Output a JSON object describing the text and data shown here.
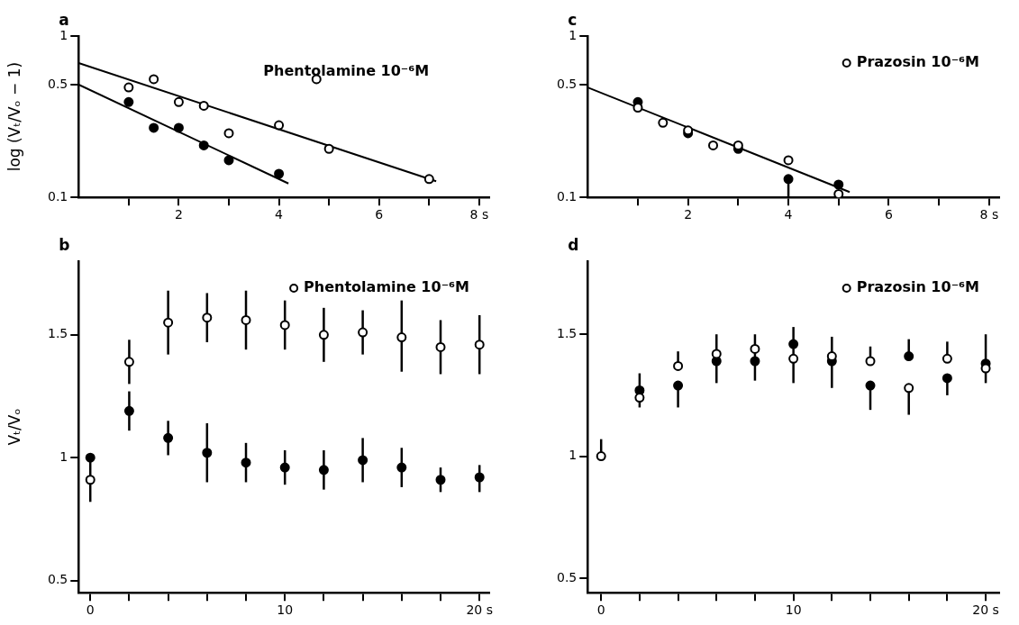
{
  "chart_data": [
    {
      "type": "scatter",
      "title": "a",
      "ylabel": "log (Vₜ/Vₒ − 1)",
      "annotations": [
        "Phentolamine 10⁻⁶M"
      ],
      "log": "y",
      "marker": "circle",
      "xlim": [
        0,
        8.2
      ],
      "ylim": [
        0.1,
        1
      ],
      "xticks": [
        {
          "value": 1,
          "label": null
        },
        2,
        {
          "value": 3,
          "label": null
        },
        4,
        {
          "value": 5,
          "label": null
        },
        6,
        {
          "value": 7,
          "label": null
        },
        {
          "value": 8,
          "label": "8 s"
        }
      ],
      "yticks": [
        0.1,
        0.5,
        1
      ],
      "series": [
        {
          "color": "#ffffff",
          "x": [
            1,
            1.5,
            2,
            2.5,
            3,
            4,
            4.75,
            5,
            7
          ],
          "values": [
            0.48,
            0.54,
            0.39,
            0.37,
            0.25,
            0.28,
            0.54,
            0.2,
            0.13
          ]
        },
        {
          "color": "#000000",
          "x": [
            1,
            1.5,
            2,
            2.5,
            3,
            4
          ],
          "values": [
            0.39,
            0.27,
            0.27,
            0.21,
            0.17,
            0.14
          ]
        },
        {
          "type": "line",
          "marker": "none",
          "color": "#000000",
          "x": [
            0,
            7.14
          ],
          "values": [
            0.68,
            0.126
          ]
        },
        {
          "type": "line",
          "marker": "none",
          "color": "#000000",
          "x": [
            0,
            4.19
          ],
          "values": [
            0.5,
            0.122
          ]
        }
      ]
    },
    {
      "type": "scatter",
      "title": "c",
      "log": "y",
      "marker": "circle",
      "legend": "top right",
      "xlim": [
        0,
        8.2
      ],
      "ylim": [
        0.1,
        1
      ],
      "xticks": [
        {
          "value": 1,
          "label": null
        },
        2,
        {
          "value": 3,
          "label": null
        },
        4,
        {
          "value": 5,
          "label": null
        },
        6,
        {
          "value": 7,
          "label": null
        },
        {
          "value": 8,
          "label": "8 s"
        }
      ],
      "yticks": [
        0.1,
        0.5,
        1
      ],
      "series": [
        {
          "name": "Prazosin 10⁻⁶M",
          "color": "#ffffff",
          "x": [
            1,
            1.5,
            2,
            2.5,
            3,
            4,
            5
          ],
          "values": [
            0.36,
            0.29,
            0.26,
            0.21,
            0.21,
            0.17,
            0.105
          ]
        },
        {
          "color": "#000000",
          "x": [
            1,
            2,
            3,
            4,
            5
          ],
          "values": [
            0.39,
            0.25,
            0.2,
            0.13,
            0.12
          ],
          "errors": [
            null,
            null,
            null,
            [
              0.1,
              0.13
            ],
            null
          ]
        },
        {
          "type": "line",
          "marker": "none",
          "color": "#000000",
          "x": [
            0,
            5.22
          ],
          "values": [
            0.48,
            0.108
          ]
        }
      ]
    },
    {
      "type": "scatter",
      "title": "b",
      "ylabel": "Vₜ/Vₒ",
      "marker": "circle",
      "legend": "top right",
      "xlim": [
        -0.6,
        20.5
      ],
      "ylim": [
        0.45,
        1.8
      ],
      "xticks": [
        0,
        {
          "value": 2,
          "label": null
        },
        {
          "value": 4,
          "label": null
        },
        {
          "value": 6,
          "label": null
        },
        {
          "value": 8,
          "label": null
        },
        10,
        {
          "value": 12,
          "label": null
        },
        {
          "value": 14,
          "label": null
        },
        {
          "value": 16,
          "label": null
        },
        {
          "value": 18,
          "label": null
        },
        {
          "value": 20,
          "label": "20 s"
        }
      ],
      "yticks": [
        0.5,
        1,
        1.5
      ],
      "x": [
        0,
        2,
        4,
        6,
        8,
        10,
        12,
        14,
        16,
        18,
        20
      ],
      "series": [
        {
          "name": "Phentolamine 10⁻⁶M",
          "color": "#ffffff",
          "values": [
            0.91,
            1.39,
            1.55,
            1.57,
            1.56,
            1.54,
            1.5,
            1.51,
            1.49,
            1.45,
            1.46
          ],
          "errors": [
            [
              0.82,
              0.99
            ],
            [
              1.3,
              1.48
            ],
            [
              1.42,
              1.68
            ],
            [
              1.47,
              1.67
            ],
            [
              1.44,
              1.68
            ],
            [
              1.44,
              1.64
            ],
            [
              1.39,
              1.61
            ],
            [
              1.42,
              1.6
            ],
            [
              1.35,
              1.64
            ],
            [
              1.34,
              1.56
            ],
            [
              1.34,
              1.58
            ]
          ]
        },
        {
          "color": "#000000",
          "values": [
            1.0,
            1.19,
            1.08,
            1.02,
            0.98,
            0.96,
            0.95,
            0.99,
            0.96,
            0.91,
            0.92
          ],
          "errors": [
            null,
            [
              1.11,
              1.27
            ],
            [
              1.01,
              1.15
            ],
            [
              0.9,
              1.14
            ],
            [
              0.9,
              1.06
            ],
            [
              0.89,
              1.03
            ],
            [
              0.87,
              1.03
            ],
            [
              0.9,
              1.08
            ],
            [
              0.88,
              1.04
            ],
            [
              0.86,
              0.96
            ],
            [
              0.86,
              0.97
            ]
          ]
        }
      ]
    },
    {
      "type": "scatter",
      "title": "d",
      "marker": "circle",
      "legend": "top right",
      "xlim": [
        -0.7,
        20.7
      ],
      "ylim": [
        0.44,
        1.8
      ],
      "xticks": [
        0,
        {
          "value": 2,
          "label": null
        },
        {
          "value": 4,
          "label": null
        },
        {
          "value": 6,
          "label": null
        },
        {
          "value": 8,
          "label": null
        },
        10,
        {
          "value": 12,
          "label": null
        },
        {
          "value": 14,
          "label": null
        },
        {
          "value": 16,
          "label": null
        },
        {
          "value": 18,
          "label": null
        },
        {
          "value": 20,
          "label": "20 s"
        }
      ],
      "yticks": [
        0.5,
        1,
        1.5
      ],
      "x": [
        0,
        2,
        4,
        6,
        8,
        10,
        12,
        14,
        16,
        18,
        20
      ],
      "series": [
        {
          "name": "Prazosin 10⁻⁶M",
          "color": "#ffffff",
          "values": [
            1.0,
            1.24,
            1.37,
            1.42,
            1.44,
            1.4,
            1.41,
            1.39,
            1.28,
            1.4,
            1.36
          ],
          "errors": [
            [
              1.0,
              1.07
            ],
            null,
            [
              1.37,
              1.43
            ],
            null,
            null,
            null,
            null,
            [
              1.39,
              1.45
            ],
            [
              1.17,
              1.28
            ],
            [
              1.4,
              1.47
            ],
            null
          ]
        },
        {
          "color": "#000000",
          "values": [
            null,
            1.27,
            1.29,
            1.39,
            1.39,
            1.46,
            1.39,
            1.29,
            1.41,
            1.32,
            1.38
          ],
          "errors": [
            null,
            [
              1.2,
              1.34
            ],
            [
              1.2,
              1.29
            ],
            [
              1.3,
              1.5
            ],
            [
              1.31,
              1.5
            ],
            [
              1.3,
              1.53
            ],
            [
              1.28,
              1.49
            ],
            [
              1.19,
              1.29
            ],
            [
              1.41,
              1.48
            ],
            [
              1.25,
              1.32
            ],
            [
              1.3,
              1.5
            ]
          ]
        }
      ]
    }
  ]
}
